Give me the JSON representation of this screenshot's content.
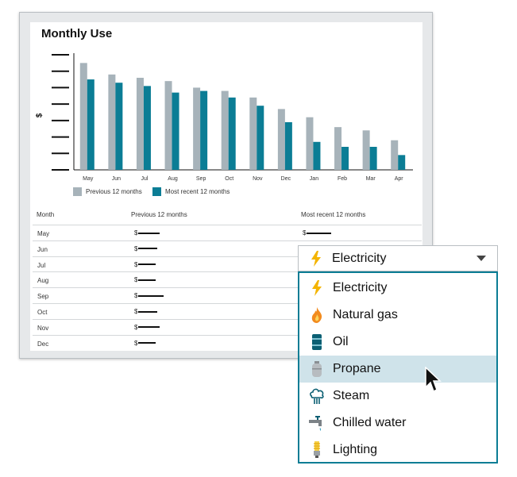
{
  "card": {
    "title": "Monthly Use",
    "y_axis_label": "$"
  },
  "chart_data": {
    "type": "bar",
    "title": "Monthly Use",
    "ylabel": "$",
    "categories": [
      "May",
      "Jun",
      "Jul",
      "Aug",
      "Sep",
      "Oct",
      "Nov",
      "Dec",
      "Jan",
      "Feb",
      "Mar",
      "Apr"
    ],
    "series": [
      {
        "name": "Previous 12 months",
        "color": "#a7b3ba",
        "values": [
          6.5,
          5.8,
          5.6,
          5.4,
          5.0,
          4.8,
          4.4,
          3.7,
          3.2,
          2.6,
          2.4,
          1.8
        ]
      },
      {
        "name": "Most recent 12 months",
        "color": "#0b7d95",
        "values": [
          5.5,
          5.3,
          5.1,
          4.7,
          4.8,
          4.4,
          3.9,
          2.9,
          1.7,
          1.4,
          1.4,
          0.9
        ]
      }
    ],
    "ylim": [
      0,
      7
    ],
    "legend": "bottom"
  },
  "legend": {
    "prev": "Previous 12 months",
    "recent": "Most recent 12 months"
  },
  "table": {
    "headers": {
      "month": "Month",
      "prev": "Previous 12 months",
      "recent": "Most recent 12 months"
    },
    "currency": "$",
    "rows": [
      {
        "month": "May",
        "prev_bar": 0.62,
        "recent_bar": 0.7
      },
      {
        "month": "Jun",
        "prev_bar": 0.55,
        "recent_bar": null
      },
      {
        "month": "Jul",
        "prev_bar": 0.5,
        "recent_bar": null
      },
      {
        "month": "Aug",
        "prev_bar": 0.5,
        "recent_bar": null
      },
      {
        "month": "Sep",
        "prev_bar": 0.72,
        "recent_bar": null
      },
      {
        "month": "Oct",
        "prev_bar": 0.55,
        "recent_bar": null
      },
      {
        "month": "Nov",
        "prev_bar": 0.62,
        "recent_bar": null
      },
      {
        "month": "Dec",
        "prev_bar": 0.5,
        "recent_bar": null
      }
    ]
  },
  "dropdown": {
    "selected": {
      "label": "Electricity",
      "icon": "lightning-icon"
    },
    "options": [
      {
        "label": "Electricity",
        "icon": "lightning-icon"
      },
      {
        "label": "Natural gas",
        "icon": "flame-icon"
      },
      {
        "label": "Oil",
        "icon": "oil-barrel-icon"
      },
      {
        "label": "Propane",
        "icon": "propane-tank-icon"
      },
      {
        "label": "Steam",
        "icon": "steam-icon"
      },
      {
        "label": "Chilled water",
        "icon": "faucet-icon"
      },
      {
        "label": "Lighting",
        "icon": "light-bulb-icon"
      }
    ],
    "highlighted_index": 3,
    "accent": "#0b7d95",
    "highlight_color": "#cfe3ea"
  }
}
